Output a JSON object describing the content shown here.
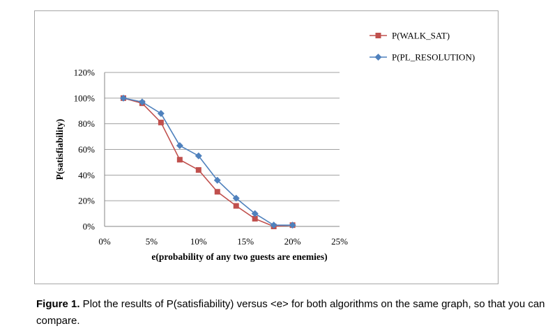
{
  "caption": {
    "label": "Figure 1.",
    "text": " Plot the results of P(satisfiability) versus <e> for both algorithms on the same graph, so that you can compare."
  },
  "chart_data": {
    "type": "line",
    "title": "",
    "xlabel": "e(probability of any two guests are enemies)",
    "ylabel": "P(satisfiability)",
    "xlim": [
      0,
      0.25
    ],
    "ylim": [
      0,
      1.2
    ],
    "x_ticks": [
      0,
      0.05,
      0.1,
      0.15,
      0.2,
      0.25
    ],
    "x_tick_labels": [
      "0%",
      "5%",
      "10%",
      "15%",
      "20%",
      "25%"
    ],
    "y_ticks": [
      0,
      0.2,
      0.4,
      0.6,
      0.8,
      1.0,
      1.2
    ],
    "y_tick_labels": [
      "0%",
      "20%",
      "40%",
      "60%",
      "80%",
      "100%",
      "120%"
    ],
    "grid": "horizontal",
    "legend_position": "top-right",
    "series": [
      {
        "name": "P(WALK_SAT)",
        "color": "#c0504d",
        "marker": "square",
        "x": [
          0.02,
          0.04,
          0.06,
          0.08,
          0.1,
          0.12,
          0.14,
          0.16,
          0.18,
          0.2
        ],
        "y": [
          1.0,
          0.96,
          0.81,
          0.52,
          0.44,
          0.27,
          0.16,
          0.06,
          0.0,
          0.01
        ]
      },
      {
        "name": "P(PL_RESOLUTION)",
        "color": "#4f81bd",
        "marker": "diamond",
        "x": [
          0.02,
          0.04,
          0.06,
          0.08,
          0.1,
          0.12,
          0.14,
          0.16,
          0.18,
          0.2
        ],
        "y": [
          1.0,
          0.97,
          0.88,
          0.63,
          0.55,
          0.36,
          0.22,
          0.1,
          0.01,
          0.01
        ]
      }
    ]
  }
}
